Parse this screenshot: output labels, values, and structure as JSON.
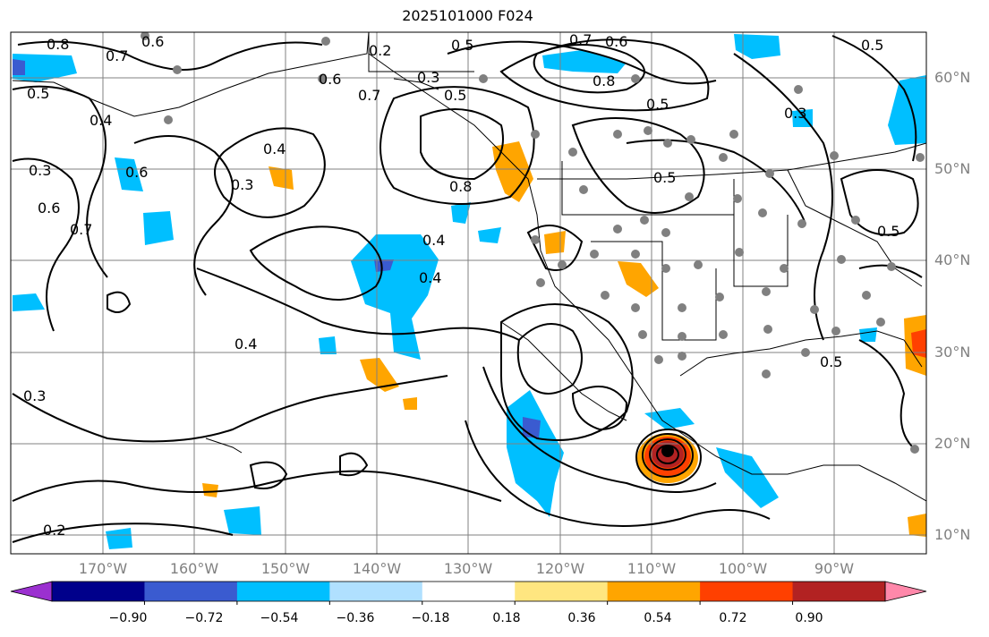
{
  "title": "2025101000 F024",
  "map": {
    "lat_ticks": [
      "60°N",
      "50°N",
      "40°N",
      "30°N",
      "20°N",
      "10°N"
    ],
    "lon_ticks": [
      "170°W",
      "160°W",
      "150°W",
      "140°W",
      "130°W",
      "120°W",
      "110°W",
      "100°W",
      "90°W"
    ],
    "grid": true,
    "contour_labels": [
      "0.8",
      "0.7",
      "0.6",
      "0.5",
      "0.4",
      "0.3",
      "0.2",
      "0.6",
      "0.7",
      "0.4",
      "0.5",
      "0.3",
      "0.5",
      "0.6",
      "0.8",
      "0.7",
      "0.6",
      "0.5",
      "0.5",
      "0.4",
      "0.4",
      "0.3",
      "0.2",
      "0.4",
      "0.6",
      "0.7",
      "0.3",
      "0.5",
      "0.5",
      "0.5",
      "0.3",
      "0.8"
    ],
    "colors": {
      "land": "#000000",
      "grid": "#808080",
      "contour": "#000000",
      "station_dot": "#808080",
      "cyclone_center": "#000000"
    }
  },
  "colorbar": {
    "tick_labels": [
      "−0.90",
      "−0.72",
      "−0.54",
      "−0.36",
      "−0.18",
      "0.18",
      "0.36",
      "0.54",
      "0.72",
      "0.90"
    ],
    "colors": [
      "#9b30d0",
      "#00008b",
      "#3a5bd0",
      "#00bfff",
      "#b0e0ff",
      "#ffffff",
      "#ffe680",
      "#ffa500",
      "#ff4000",
      "#b22222",
      "#ff88aa"
    ]
  }
}
